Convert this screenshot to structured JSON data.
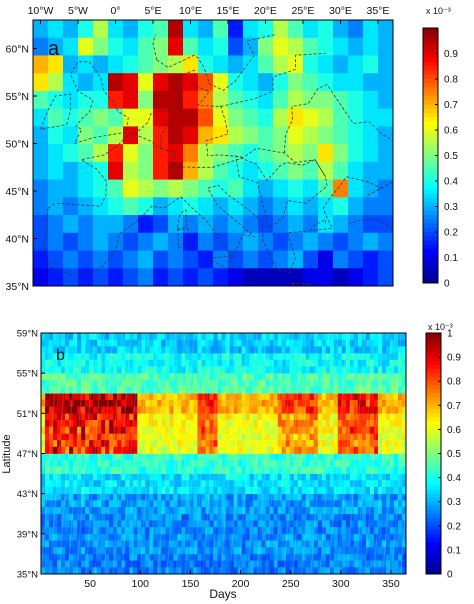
{
  "palette": [
    "#00008f",
    "#0000ff",
    "#0080ff",
    "#00ffff",
    "#80ff80",
    "#ffff00",
    "#ff8000",
    "#ff0000",
    "#800000"
  ],
  "chart_data": [
    {
      "type": "heatmap",
      "panel_label": "a",
      "x_tick_labels": [
        "10°W",
        "5°W",
        "0°",
        "5°E",
        "10°E",
        "15°E",
        "20°E",
        "25°E",
        "30°E",
        "35°E"
      ],
      "y_tick_labels": [
        "60°N",
        "55°N",
        "50°N",
        "45°N",
        "40°N",
        "35°N"
      ],
      "xlim": [
        -11,
        37
      ],
      "ylim": [
        35,
        63
      ],
      "cell_size_deg": 2,
      "colorbar": {
        "min": 0,
        "max": 1,
        "tick_labels": [
          "0",
          "0.1",
          "0.2",
          "0.3",
          "0.4",
          "0.5",
          "0.6",
          "0.7",
          "0.8",
          "0.9"
        ],
        "exponent_label": "x 10⁻³"
      },
      "grid_rows_north_to_south": [
        [
          0.3,
          0.35,
          0.3,
          0.4,
          0.55,
          0.35,
          0.3,
          0.4,
          0.45,
          0.95,
          0.35,
          0.3,
          0.45,
          0.15,
          0.35,
          0.4,
          0.55,
          0.45,
          0.35,
          0.4,
          0.3,
          0.25,
          0.35,
          0.3
        ],
        [
          0.25,
          0.3,
          0.35,
          0.6,
          0.5,
          0.4,
          0.35,
          0.45,
          0.5,
          0.9,
          0.45,
          0.35,
          0.4,
          0.2,
          0.3,
          0.5,
          0.6,
          0.55,
          0.45,
          0.4,
          0.35,
          0.3,
          0.35,
          0.3
        ],
        [
          0.7,
          0.65,
          0.3,
          0.35,
          0.3,
          0.35,
          0.4,
          0.45,
          0.5,
          0.55,
          0.65,
          0.4,
          0.35,
          0.3,
          0.35,
          0.45,
          0.55,
          0.6,
          0.4,
          0.35,
          0.3,
          0.35,
          0.4,
          0.3
        ],
        [
          0.65,
          0.55,
          0.35,
          0.3,
          0.35,
          0.95,
          0.9,
          0.6,
          0.9,
          0.95,
          0.9,
          0.8,
          0.6,
          0.4,
          0.35,
          0.3,
          0.4,
          0.5,
          0.45,
          0.4,
          0.35,
          0.35,
          0.3,
          0.3
        ],
        [
          0.45,
          0.4,
          0.35,
          0.4,
          0.4,
          0.85,
          0.9,
          0.5,
          0.95,
          0.95,
          0.85,
          0.75,
          0.55,
          0.45,
          0.4,
          0.35,
          0.45,
          0.55,
          0.5,
          0.5,
          0.45,
          0.4,
          0.35,
          0.3
        ],
        [
          0.35,
          0.45,
          0.4,
          0.45,
          0.5,
          0.45,
          0.6,
          0.6,
          0.9,
          0.95,
          0.95,
          0.8,
          0.6,
          0.5,
          0.45,
          0.4,
          0.55,
          0.65,
          0.6,
          0.55,
          0.45,
          0.4,
          0.35,
          0.35
        ],
        [
          0.3,
          0.4,
          0.35,
          0.5,
          0.45,
          0.55,
          0.9,
          0.55,
          0.85,
          0.95,
          0.9,
          0.7,
          0.65,
          0.55,
          0.5,
          0.45,
          0.5,
          0.6,
          0.55,
          0.5,
          0.45,
          0.4,
          0.35,
          0.3
        ],
        [
          0.3,
          0.35,
          0.4,
          0.45,
          0.55,
          0.85,
          0.6,
          0.5,
          0.85,
          0.9,
          0.75,
          0.55,
          0.5,
          0.45,
          0.4,
          0.45,
          0.5,
          0.55,
          0.5,
          0.65,
          0.5,
          0.4,
          0.35,
          0.3
        ],
        [
          0.3,
          0.35,
          0.3,
          0.35,
          0.4,
          0.9,
          0.55,
          0.5,
          0.85,
          0.95,
          0.7,
          0.55,
          0.45,
          0.4,
          0.35,
          0.4,
          0.45,
          0.5,
          0.45,
          0.55,
          0.45,
          0.35,
          0.3,
          0.3
        ],
        [
          0.25,
          0.3,
          0.3,
          0.35,
          0.4,
          0.45,
          0.6,
          0.55,
          0.5,
          0.55,
          0.5,
          0.45,
          0.4,
          0.45,
          0.35,
          0.3,
          0.35,
          0.4,
          0.35,
          0.45,
          0.75,
          0.35,
          0.3,
          0.25
        ],
        [
          0.25,
          0.3,
          0.25,
          0.3,
          0.35,
          0.4,
          0.45,
          0.4,
          0.3,
          0.35,
          0.4,
          0.35,
          0.3,
          0.35,
          0.3,
          0.25,
          0.3,
          0.35,
          0.3,
          0.35,
          0.4,
          0.3,
          0.25,
          0.25
        ],
        [
          0.2,
          0.25,
          0.3,
          0.25,
          0.3,
          0.3,
          0.25,
          0.15,
          0.2,
          0.3,
          0.25,
          0.3,
          0.25,
          0.3,
          0.25,
          0.2,
          0.25,
          0.3,
          0.25,
          0.35,
          0.3,
          0.25,
          0.2,
          0.2
        ],
        [
          0.2,
          0.25,
          0.2,
          0.25,
          0.3,
          0.25,
          0.2,
          0.25,
          0.3,
          0.25,
          0.15,
          0.25,
          0.2,
          0.25,
          0.3,
          0.25,
          0.2,
          0.25,
          0.3,
          0.25,
          0.2,
          0.25,
          0.3,
          0.25
        ],
        [
          0.15,
          0.2,
          0.25,
          0.2,
          0.25,
          0.2,
          0.25,
          0.3,
          0.2,
          0.25,
          0.2,
          0.15,
          0.25,
          0.2,
          0.25,
          0.2,
          0.25,
          0.3,
          0.2,
          0.1,
          0.25,
          0.2,
          0.15,
          0.2
        ],
        [
          0.1,
          0.15,
          0.2,
          0.15,
          0.2,
          0.15,
          0.2,
          0.25,
          0.15,
          0.2,
          0.15,
          0.2,
          0.15,
          0.1,
          0.05,
          0.05,
          0.05,
          0.05,
          0.1,
          0.1,
          0.05,
          0.1,
          0.15,
          0.2
        ]
      ]
    },
    {
      "type": "heatmap",
      "panel_label": "b",
      "xlabel": "Days",
      "ylabel": "Latitude",
      "x_ticks": [
        50,
        100,
        150,
        200,
        250,
        300,
        350
      ],
      "xlim": [
        1,
        365
      ],
      "y_tick_labels": [
        "59°N",
        "55°N",
        "51°N",
        "47°N",
        "43°N",
        "39°N",
        "35°N"
      ],
      "ylim": [
        35,
        59
      ],
      "colorbar": {
        "min": 0,
        "max": 1,
        "tick_labels": [
          "0",
          "0.1",
          "0.2",
          "0.3",
          "0.4",
          "0.5",
          "0.6",
          "0.7",
          "0.8",
          "0.9",
          "1"
        ],
        "exponent_label": "x 10⁻³"
      },
      "latitude_band_base_values_south_to_north": [
        {
          "lat_from": 35,
          "lat_to": 37,
          "value": 0.25
        },
        {
          "lat_from": 37,
          "lat_to": 39,
          "value": 0.27
        },
        {
          "lat_from": 39,
          "lat_to": 41,
          "value": 0.26
        },
        {
          "lat_from": 41,
          "lat_to": 43,
          "value": 0.28
        },
        {
          "lat_from": 43,
          "lat_to": 45,
          "value": 0.35
        },
        {
          "lat_from": 45,
          "lat_to": 47,
          "value": 0.42
        },
        {
          "lat_from": 47,
          "lat_to": 49,
          "value": 0.6
        },
        {
          "lat_from": 49,
          "lat_to": 51,
          "value": 0.62
        },
        {
          "lat_from": 51,
          "lat_to": 53,
          "value": 0.7
        },
        {
          "lat_from": 53,
          "lat_to": 55,
          "value": 0.45
        },
        {
          "lat_from": 55,
          "lat_to": 57,
          "value": 0.38
        },
        {
          "lat_from": 57,
          "lat_to": 59,
          "value": 0.33
        }
      ],
      "seasonal_peaks": [
        {
          "day_from": 5,
          "day_to": 95,
          "boost": 0.25
        },
        {
          "day_from": 155,
          "day_to": 175,
          "boost": 0.15
        },
        {
          "day_from": 235,
          "day_to": 275,
          "boost": 0.12
        },
        {
          "day_from": 295,
          "day_to": 335,
          "boost": 0.18
        }
      ]
    }
  ]
}
